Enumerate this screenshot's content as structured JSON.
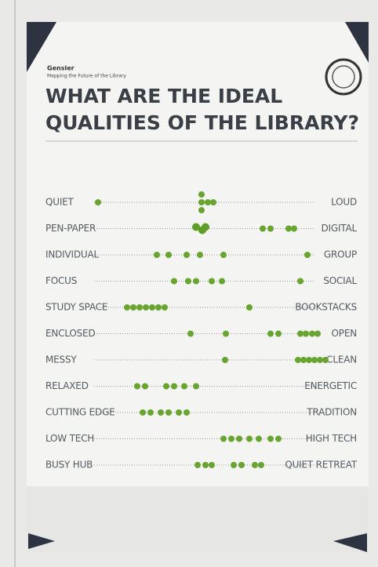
{
  "header": {
    "brand": "Gensler",
    "subtitle": "Mapping the Future of the Library",
    "title_lines": [
      "WHAT ARE THE IDEAL",
      "QUALITIES OF THE LIBRARY?"
    ]
  },
  "rows": [
    {
      "left": "QUIET",
      "right": "LOUD"
    },
    {
      "left": "PEN-PAPER",
      "right": "DIGITAL"
    },
    {
      "left": "INDIVIDUAL",
      "right": "GROUP"
    },
    {
      "left": "FOCUS",
      "right": "SOCIAL"
    },
    {
      "left": "STUDY SPACE",
      "right": "BOOKSTACKS"
    },
    {
      "left": "ENCLOSED",
      "right": "OPEN"
    },
    {
      "left": "MESSY",
      "right": "CLEAN"
    },
    {
      "left": "RELAXED",
      "right": "ENERGETIC"
    },
    {
      "left": "CUTTING EDGE",
      "right": "TRADITION"
    },
    {
      "left": "LOW TECH",
      "right": "HIGH TECH"
    },
    {
      "left": "BUSY HUB",
      "right": "QUIET RETREAT"
    }
  ]
}
